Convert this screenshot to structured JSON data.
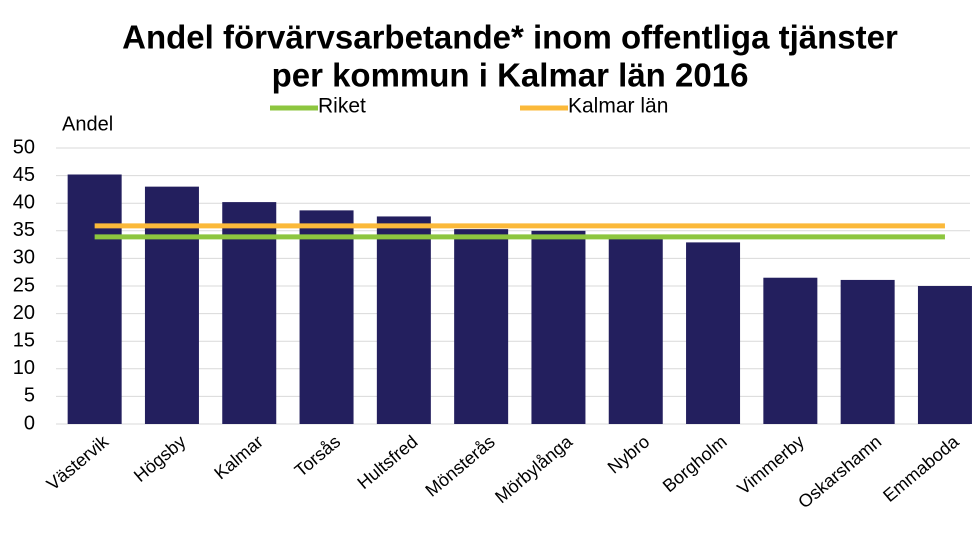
{
  "chart_data": {
    "type": "bar",
    "title": [
      "Andel förvärvsarbetande* inom offentliga tjänster",
      "per kommun i Kalmar län 2016"
    ],
    "y_label": "Andel",
    "categories": [
      "Västervik",
      "Högsby",
      "Kalmar",
      "Torsås",
      "Hultsfred",
      "Mönsterås",
      "Mörbylånga",
      "Nybro",
      "Borgholm",
      "Vimmerby",
      "Oskarshamn",
      "Emmaboda"
    ],
    "values": [
      45.2,
      43.0,
      40.2,
      38.7,
      37.6,
      35.3,
      35.0,
      33.8,
      32.9,
      26.5,
      26.1,
      25.0
    ],
    "color": "#231f5e",
    "series": [
      {
        "name": "Riket",
        "color": "#8dc63f",
        "values": [
          33.9,
          33.9,
          33.9,
          33.9,
          33.9,
          33.9,
          33.9,
          33.9,
          33.9,
          33.9,
          33.9,
          33.9
        ]
      },
      {
        "name": "Kalmar län",
        "color": "#fbb93a",
        "values": [
          35.9,
          35.9,
          35.9,
          35.9,
          35.9,
          35.9,
          35.9,
          35.9,
          35.9,
          35.9,
          35.9,
          35.9
        ]
      }
    ],
    "ylim": [
      0,
      50
    ],
    "yticks": [
      0,
      5,
      10,
      15,
      20,
      25,
      30,
      35,
      40,
      45,
      50
    ],
    "grid": true,
    "legend": "top"
  }
}
